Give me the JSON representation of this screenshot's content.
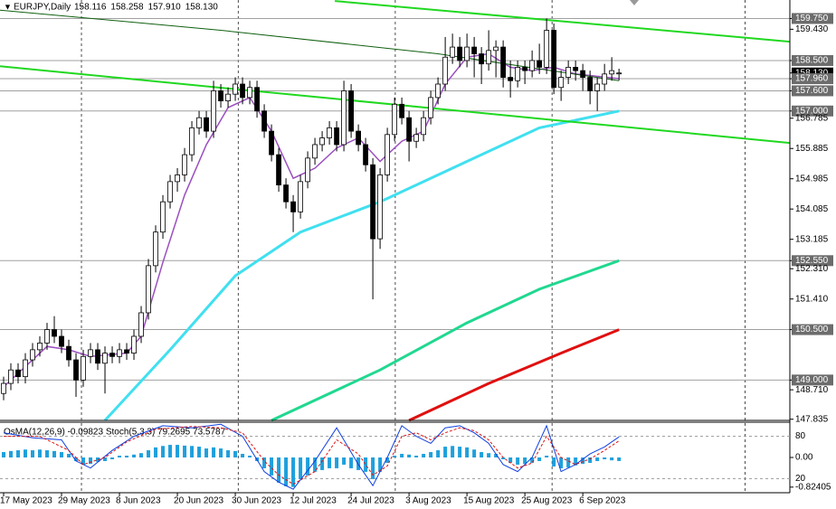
{
  "chart_data": {
    "type": "candlestick",
    "title": "EURJPY,Daily",
    "last_labels": [
      "158.116",
      "158.258",
      "157.910",
      "158.130"
    ],
    "up_color": "#ffffff",
    "down_color": "#000000",
    "xlim": [
      -0.5,
      108.6
    ],
    "ylim": [
      147.8,
      160.3
    ],
    "xgrid": [
      10.75,
      32.4,
      54.1,
      75.75,
      102.4
    ],
    "xticks": [
      {
        "value": 0,
        "label": "17 May 2023"
      },
      {
        "value": 8,
        "label": "29 May 2023"
      },
      {
        "value": 16,
        "label": "8 Jun 2023"
      },
      {
        "value": 24,
        "label": "20 Jun 2023"
      },
      {
        "value": 32,
        "label": "30 Jun 2023"
      },
      {
        "value": 40,
        "label": "12 Jul 2023"
      },
      {
        "value": 48,
        "label": "24 Jul 2023"
      },
      {
        "value": 56,
        "label": "3 Aug 2023"
      },
      {
        "value": 64,
        "label": "15 Aug 2023"
      },
      {
        "value": 72,
        "label": "25 Aug 2023"
      },
      {
        "value": 80,
        "label": "6 Sep 2023"
      }
    ],
    "yticks": [
      {
        "value": 159.75,
        "label": "159.750",
        "level": true
      },
      {
        "value": 159.43,
        "label": "159.430"
      },
      {
        "value": 158.5,
        "label": "158.500",
        "level": true
      },
      {
        "value": 158.13,
        "label": "158.130",
        "current": true
      },
      {
        "value": 157.96,
        "label": "157.960",
        "level": true
      },
      {
        "value": 157.6,
        "label": "157.600",
        "level": true
      },
      {
        "value": 157.0,
        "label": "157.000",
        "level": true
      },
      {
        "value": 156.785,
        "label": "156.785"
      },
      {
        "value": 155.885,
        "label": "155.885"
      },
      {
        "value": 154.985,
        "label": "154.985"
      },
      {
        "value": 154.085,
        "label": "154.085"
      },
      {
        "value": 153.185,
        "label": "153.185"
      },
      {
        "value": 152.55,
        "label": "152.550",
        "level": true
      },
      {
        "value": 152.31,
        "label": "152.310"
      },
      {
        "value": 151.41,
        "label": "151.410"
      },
      {
        "value": 150.5,
        "label": "150.500",
        "level": true
      },
      {
        "value": 149.0,
        "label": "149.000",
        "level": true
      },
      {
        "value": 148.71,
        "label": "148.710"
      },
      {
        "value": 147.835,
        "label": "147.835"
      }
    ],
    "candles": [
      [
        148.6,
        149.1,
        148.4,
        148.9
      ],
      [
        148.9,
        149.5,
        148.7,
        149.3
      ],
      [
        149.3,
        149.5,
        148.9,
        149.1
      ],
      [
        149.1,
        149.8,
        148.9,
        149.6
      ],
      [
        149.6,
        150.1,
        149.4,
        149.9
      ],
      [
        149.9,
        150.3,
        149.7,
        150.1
      ],
      [
        150.1,
        150.7,
        149.9,
        150.5
      ],
      [
        150.5,
        150.9,
        150.1,
        150.3
      ],
      [
        150.3,
        150.5,
        149.8,
        150.0
      ],
      [
        150.0,
        150.2,
        149.4,
        149.6
      ],
      [
        149.6,
        149.8,
        148.5,
        149.0
      ],
      [
        149.0,
        149.9,
        148.8,
        149.7
      ],
      [
        149.7,
        150.1,
        149.5,
        149.9
      ],
      [
        149.9,
        150.1,
        149.3,
        149.5
      ],
      [
        149.5,
        150.0,
        148.6,
        149.8
      ],
      [
        149.8,
        150.0,
        149.5,
        149.7
      ],
      [
        149.7,
        150.1,
        149.5,
        149.9
      ],
      [
        149.9,
        150.1,
        149.6,
        149.8
      ],
      [
        149.8,
        150.5,
        149.6,
        150.3
      ],
      [
        150.3,
        151.2,
        150.1,
        151.0
      ],
      [
        151.0,
        152.6,
        150.8,
        152.4
      ],
      [
        152.4,
        153.6,
        152.2,
        153.4
      ],
      [
        153.4,
        154.5,
        153.2,
        154.3
      ],
      [
        154.3,
        155.1,
        154.1,
        154.9
      ],
      [
        154.9,
        155.3,
        154.6,
        155.1
      ],
      [
        155.1,
        155.9,
        154.9,
        155.7
      ],
      [
        155.7,
        156.7,
        155.5,
        156.5
      ],
      [
        156.5,
        157.0,
        156.3,
        156.8
      ],
      [
        156.8,
        157.0,
        156.2,
        156.4
      ],
      [
        156.4,
        157.9,
        156.2,
        157.6
      ],
      [
        157.6,
        157.8,
        157.1,
        157.3
      ],
      [
        157.3,
        157.7,
        157.1,
        157.5
      ],
      [
        157.5,
        158.0,
        157.3,
        157.8
      ],
      [
        157.8,
        158.0,
        157.2,
        157.4
      ],
      [
        157.4,
        157.9,
        157.2,
        157.7
      ],
      [
        157.7,
        157.9,
        156.8,
        157.0
      ],
      [
        157.0,
        157.2,
        156.2,
        156.4
      ],
      [
        156.4,
        156.6,
        155.5,
        155.7
      ],
      [
        155.7,
        155.9,
        154.6,
        154.8
      ],
      [
        154.8,
        155.0,
        154.1,
        154.3
      ],
      [
        154.3,
        154.5,
        153.4,
        154.0
      ],
      [
        154.0,
        155.1,
        153.8,
        154.9
      ],
      [
        154.9,
        155.8,
        154.7,
        155.6
      ],
      [
        155.6,
        156.2,
        155.4,
        156.0
      ],
      [
        156.0,
        156.4,
        155.8,
        156.2
      ],
      [
        156.2,
        156.7,
        156.0,
        156.5
      ],
      [
        156.5,
        156.7,
        155.8,
        156.0
      ],
      [
        156.0,
        157.9,
        155.8,
        157.6
      ],
      [
        157.6,
        157.8,
        156.2,
        156.4
      ],
      [
        156.4,
        156.6,
        155.8,
        156.0
      ],
      [
        156.0,
        156.2,
        155.2,
        155.4
      ],
      [
        155.4,
        155.6,
        151.4,
        153.2
      ],
      [
        153.2,
        155.3,
        152.9,
        155.1
      ],
      [
        155.1,
        156.5,
        154.9,
        156.3
      ],
      [
        156.3,
        157.4,
        156.1,
        157.2
      ],
      [
        157.2,
        157.4,
        156.6,
        156.8
      ],
      [
        156.8,
        157.0,
        155.5,
        156.1
      ],
      [
        156.1,
        156.5,
        155.9,
        156.3
      ],
      [
        156.3,
        157.0,
        156.1,
        156.8
      ],
      [
        156.8,
        157.6,
        156.6,
        157.4
      ],
      [
        157.4,
        158.0,
        157.2,
        157.8
      ],
      [
        157.8,
        159.2,
        157.6,
        158.6
      ],
      [
        158.6,
        159.3,
        158.4,
        158.9
      ],
      [
        158.9,
        159.2,
        158.3,
        158.5
      ],
      [
        158.5,
        159.3,
        158.3,
        158.9
      ],
      [
        158.9,
        159.2,
        158.0,
        158.7
      ],
      [
        158.7,
        158.9,
        157.8,
        158.4
      ],
      [
        158.4,
        159.4,
        158.2,
        158.8
      ],
      [
        158.8,
        159.1,
        158.0,
        158.9
      ],
      [
        158.9,
        159.1,
        157.7,
        158.0
      ],
      [
        158.0,
        158.5,
        157.4,
        157.9
      ],
      [
        157.9,
        158.5,
        157.7,
        158.3
      ],
      [
        158.3,
        158.5,
        157.8,
        158.2
      ],
      [
        158.2,
        158.8,
        158.0,
        158.5
      ],
      [
        158.5,
        159.0,
        158.1,
        158.3
      ],
      [
        158.3,
        159.75,
        158.1,
        159.4
      ],
      [
        159.4,
        159.6,
        157.5,
        157.7
      ],
      [
        157.7,
        158.2,
        157.3,
        158.0
      ],
      [
        158.0,
        158.5,
        157.8,
        158.3
      ],
      [
        158.3,
        158.5,
        157.9,
        158.2
      ],
      [
        158.2,
        158.4,
        157.6,
        158.0
      ],
      [
        158.0,
        158.2,
        157.2,
        157.6
      ],
      [
        157.6,
        158.0,
        157.0,
        157.8
      ],
      [
        157.8,
        158.4,
        157.6,
        158.1
      ],
      [
        158.1,
        158.6,
        157.9,
        158.2
      ],
      [
        158.116,
        158.258,
        157.91,
        158.13
      ]
    ],
    "lines": [
      {
        "color": "#9b4fbf",
        "width": 1.5,
        "x": [
          0,
          6,
          9,
          12,
          17,
          19,
          22,
          25,
          28,
          31,
          34,
          37,
          40,
          43,
          46,
          49,
          52,
          55,
          58,
          61,
          64,
          67,
          70,
          73,
          76,
          79,
          85
        ],
        "values": [
          148.8,
          150.0,
          149.9,
          149.7,
          149.8,
          150.3,
          152.5,
          154.5,
          156.0,
          157.1,
          157.4,
          156.4,
          155.0,
          155.3,
          155.9,
          156.2,
          155.5,
          156.1,
          156.4,
          157.8,
          158.6,
          158.7,
          158.3,
          158.2,
          158.3,
          158.1,
          157.96
        ]
      },
      {
        "color": "#40e0f0",
        "width": 3,
        "x": [
          14,
          23,
          32,
          41,
          52,
          62,
          74,
          85
        ],
        "values": [
          147.8,
          149.9,
          152.1,
          153.4,
          154.3,
          155.3,
          156.5,
          157.0
        ]
      },
      {
        "color": "#20d890",
        "width": 3,
        "x": [
          37,
          52,
          64,
          74,
          85
        ],
        "values": [
          147.8,
          149.3,
          150.7,
          151.7,
          152.55
        ]
      },
      {
        "color": "#e01010",
        "width": 3,
        "x": [
          56,
          67,
          77,
          85
        ],
        "values": [
          147.8,
          148.9,
          149.8,
          150.5
        ]
      },
      {
        "color": "#106010",
        "width": 1,
        "x": [
          -0.5,
          30,
          60,
          85
        ],
        "values": [
          160.0,
          159.4,
          158.7,
          157.9
        ]
      },
      {
        "color": "#20d820",
        "width": 2,
        "x": [
          45.75,
          108.6
        ],
        "values": [
          160.27,
          159.06
        ]
      },
      {
        "color": "#20d820",
        "width": 2,
        "x": [
          -0.5,
          108.6
        ],
        "values": [
          158.33,
          156.05
        ]
      }
    ],
    "indicator_label": "OsMA(12,26,9) -0.09823 Stoch(5,3,3) 79.2695 73.5787",
    "osma_color": "#1ea0dc",
    "osma_ylim": [
      -0.98,
      0.98
    ],
    "osma_ticks": [
      {
        "value": 0,
        "label": "0.00"
      },
      -0.82405
    ],
    "osma": [
      0.15,
      0.18,
      0.2,
      0.22,
      0.2,
      0.22,
      0.2,
      0.18,
      0.15,
      0.1,
      -0.1,
      -0.2,
      -0.18,
      -0.12,
      -0.1,
      -0.05,
      0.05,
      0.05,
      0.08,
      0.12,
      0.2,
      0.28,
      0.32,
      0.35,
      0.35,
      0.33,
      0.32,
      0.3,
      0.25,
      0.28,
      0.25,
      0.2,
      0.18,
      0.1,
      0.05,
      -0.1,
      -0.3,
      -0.5,
      -0.7,
      -0.8,
      -0.82,
      -0.6,
      -0.5,
      -0.4,
      -0.35,
      -0.3,
      -0.3,
      -0.2,
      -0.3,
      -0.35,
      -0.4,
      -0.6,
      -0.4,
      -0.15,
      0.05,
      0.1,
      0.08,
      0.05,
      0.1,
      0.15,
      0.2,
      0.3,
      0.32,
      0.3,
      0.28,
      0.22,
      0.15,
      0.12,
      0.1,
      -0.05,
      -0.15,
      -0.2,
      -0.18,
      -0.15,
      -0.1,
      0.05,
      -0.25,
      -0.3,
      -0.28,
      -0.22,
      -0.18,
      -0.15,
      -0.1,
      -0.05,
      -0.08,
      -0.09823
    ],
    "stoch_ylim": [
      0,
      100
    ],
    "stoch_ticks": [
      80,
      20
    ],
    "stoch": [
      {
        "color": "#1040e0",
        "dash": false,
        "x": [
          0,
          4,
          8,
          10,
          12,
          15,
          18,
          22,
          26,
          30,
          33,
          36,
          38,
          40,
          43,
          46,
          49,
          51,
          53,
          55,
          57,
          59,
          61,
          63,
          65,
          67,
          69,
          71,
          73,
          75,
          77,
          79,
          81,
          83,
          85
        ],
        "values": [
          85,
          78,
          75,
          45,
          35,
          60,
          80,
          95,
          92,
          97,
          80,
          30,
          15,
          5,
          45,
          92,
          40,
          10,
          50,
          95,
          80,
          70,
          92,
          95,
          85,
          70,
          40,
          30,
          50,
          95,
          30,
          40,
          55,
          65,
          79.2695
        ]
      },
      {
        "color": "#e01010",
        "dash": true,
        "x": [
          0,
          5,
          9,
          11,
          14,
          17,
          21,
          26,
          30,
          33,
          36,
          38,
          40,
          43,
          46,
          49,
          51,
          53,
          55,
          57,
          59,
          61,
          63,
          65,
          67,
          69,
          71,
          73,
          75,
          77,
          79,
          81,
          83,
          85
        ],
        "values": [
          80,
          80,
          60,
          40,
          50,
          72,
          90,
          94,
          92,
          85,
          45,
          25,
          12,
          30,
          75,
          55,
          25,
          38,
          80,
          85,
          75,
          85,
          92,
          88,
          75,
          50,
          35,
          42,
          80,
          50,
          40,
          48,
          60,
          73.5787
        ]
      }
    ]
  }
}
